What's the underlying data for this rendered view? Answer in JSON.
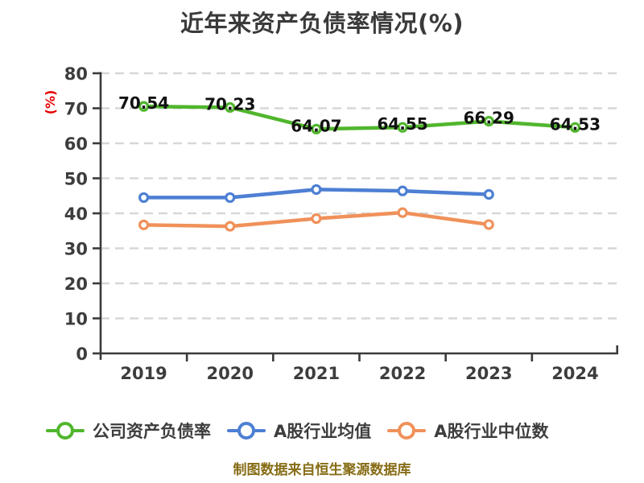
{
  "chart_data": {
    "type": "line",
    "title": "近年来资产负债率情况(%)",
    "ylabel": "(%)",
    "xlabel": "",
    "categories": [
      "2019",
      "2020",
      "2021",
      "2022",
      "2023",
      "2024"
    ],
    "series": [
      {
        "name": "公司资产负债率",
        "color": "#50b62c",
        "values": [
          70.54,
          70.23,
          64.07,
          64.55,
          66.29,
          64.53
        ],
        "show_labels": true
      },
      {
        "name": "A股行业均值",
        "color": "#4d7fd3",
        "values": [
          44.5,
          44.5,
          46.8,
          46.4,
          45.4
        ],
        "show_labels": false
      },
      {
        "name": "A股行业中位数",
        "color": "#f0915a",
        "values": [
          36.7,
          36.3,
          38.5,
          40.2,
          36.8
        ],
        "show_labels": false
      }
    ],
    "ylim": [
      0,
      80
    ],
    "yticks": [
      0,
      10,
      20,
      30,
      40,
      50,
      60,
      70,
      80
    ],
    "grid": "horizontal-dashed",
    "legend_position": "bottom",
    "marker_style": "white-filled-circle"
  },
  "colors": {
    "axis": "#3a3a3a",
    "tick_label": "#3d3d3d",
    "gridline": "#d7d7d7",
    "ylabel_red": "#e60000",
    "data_label": "#111111",
    "footer_gold": "#866c15"
  },
  "footer": {
    "credit": "制图数据来自恒生聚源数据库"
  }
}
